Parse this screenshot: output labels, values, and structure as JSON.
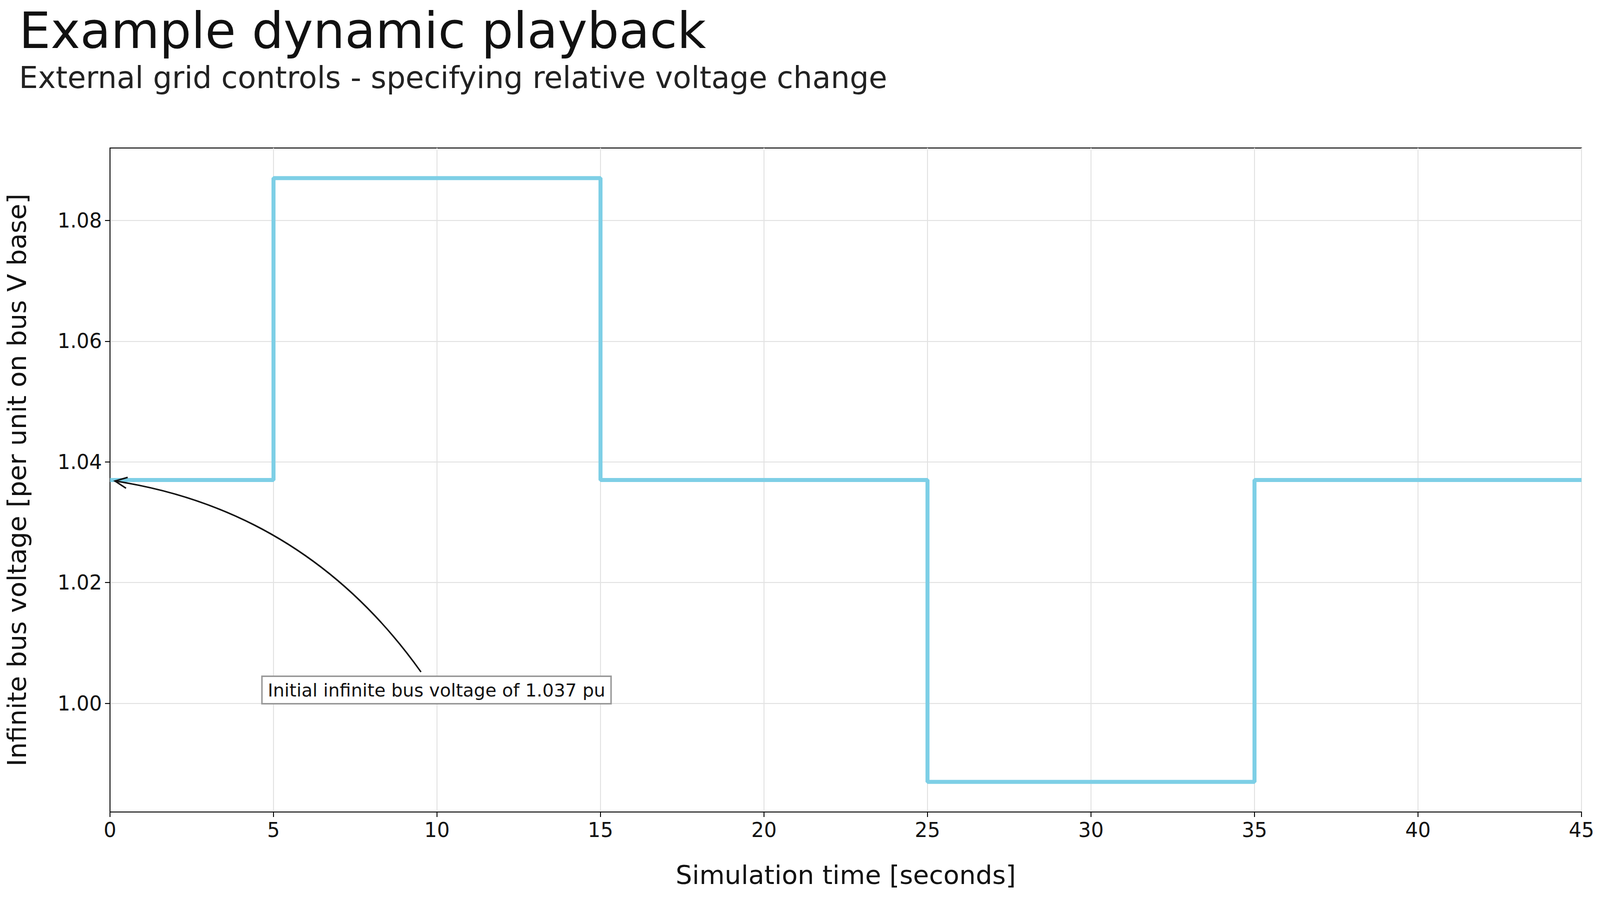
{
  "chart_data": {
    "type": "line",
    "title": "Example dynamic playback",
    "subtitle": "External grid controls - specifying relative voltage change",
    "x_label": "Simulation time [seconds]",
    "y_label": "Infinite bus voltage [per unit on bus V base]",
    "x": [
      0,
      5,
      15,
      25,
      35,
      45
    ],
    "values": [
      1.037,
      1.087,
      1.037,
      0.987,
      1.037,
      1.037
    ],
    "color": "#7ecfe6",
    "line_style": "steps-post",
    "xlim": [
      0,
      45
    ],
    "xticks": [
      0,
      5,
      10,
      15,
      20,
      25,
      30,
      35,
      40,
      45
    ],
    "ylim": [
      0.982,
      1.092
    ],
    "yticks": [
      {
        "value": 1,
        "label": "1.00"
      },
      1.02,
      1.04,
      1.06,
      1.08
    ],
    "grid": true,
    "annotations": [
      {
        "text": "Initial infinite bus voltage of 1.037 pu",
        "x": 0,
        "y": 1.037
      }
    ]
  }
}
